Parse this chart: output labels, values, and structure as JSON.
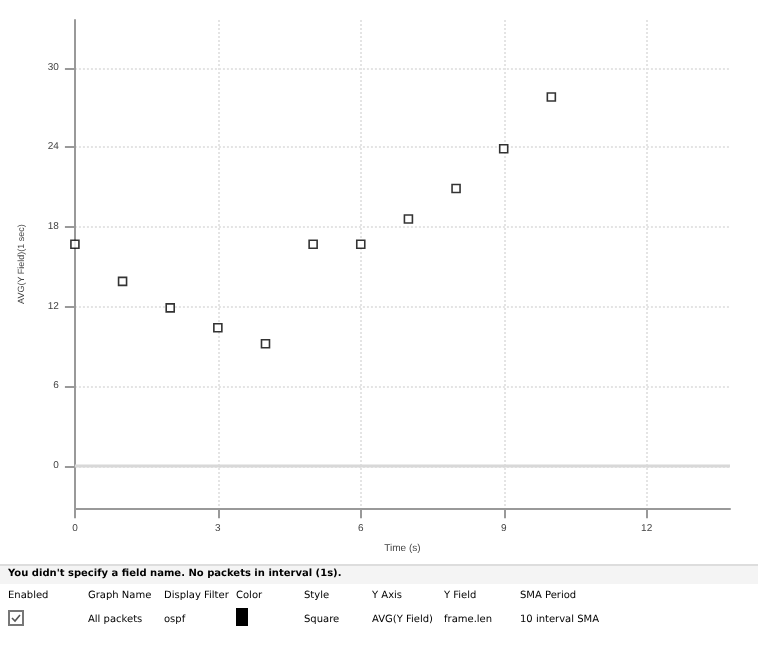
{
  "chart_data": {
    "type": "scatter",
    "xlabel": "Time (s)",
    "ylabel": "AVG(Y Field)(1 sec)",
    "x": [
      0,
      1,
      2,
      3,
      4,
      5,
      6,
      7,
      8,
      9,
      10
    ],
    "series": [
      {
        "color": "#000000",
        "values": [
          16.7,
          13.9,
          11.9,
          10.4,
          9.2,
          16.7,
          16.7,
          18.6,
          20.9,
          23.9,
          27.8
        ]
      }
    ],
    "xlim": [
      0,
      13.75
    ],
    "xticks": [
      0,
      3,
      6,
      9,
      12
    ],
    "ylim": [
      -3.2,
      33.6
    ],
    "yticks": [
      0,
      6,
      12,
      18,
      24,
      30
    ],
    "grid": true,
    "marker": "square",
    "ref_lines": [
      {
        "axis": "y",
        "value": 0,
        "color": "#d8d8d8"
      }
    ],
    "annotations": [
      "You didn't specify a field name. No packets in interval (1s).",
      "Enabled",
      "Graph Name",
      "Display Filter",
      "Color",
      "Style",
      "Y Axis",
      "Y Field",
      "SMA Period",
      "All packets",
      "ospf",
      "Square",
      "AVG(Y Field)",
      "frame.len",
      "10 interval SMA"
    ]
  }
}
